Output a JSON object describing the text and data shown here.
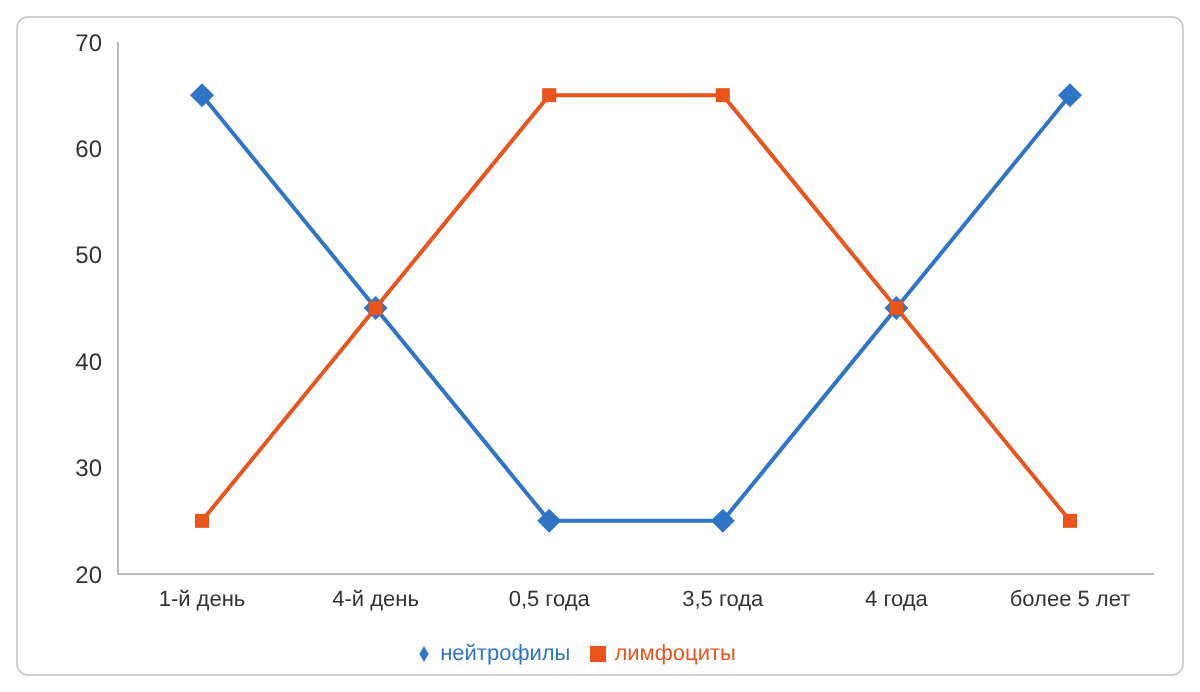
{
  "chart_data": {
    "type": "line",
    "categories": [
      "1-й день",
      "4-й день",
      "0,5 года",
      "3,5 года",
      "4 года",
      "более 5 лет"
    ],
    "series": [
      {
        "name": "нейтрофилы",
        "color": "#2e75c6",
        "marker": "diamond",
        "values": [
          65,
          45,
          25,
          25,
          45,
          65
        ]
      },
      {
        "name": "лимфоциты",
        "color": "#e8541c",
        "marker": "square",
        "values": [
          25,
          45,
          65,
          65,
          45,
          25
        ]
      }
    ],
    "ylim": [
      20,
      70
    ],
    "yticks": [
      20,
      30,
      40,
      50,
      60,
      70
    ],
    "grid": false,
    "legend": "bottom",
    "line_style": "solid"
  }
}
